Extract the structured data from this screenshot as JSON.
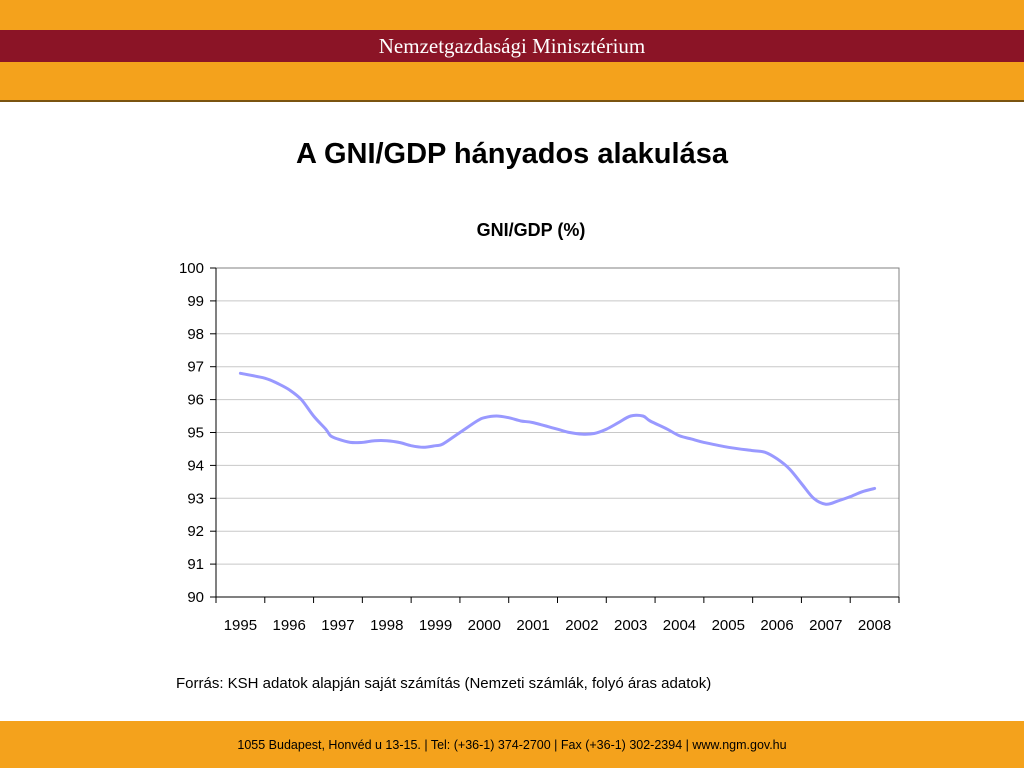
{
  "header": {
    "title": "Nemzetgazdasági Minisztérium"
  },
  "page": {
    "title": "A GNI/GDP hányados alakulása"
  },
  "chart_data": {
    "type": "line",
    "title": "GNI/GDP (%)",
    "xlabel": "",
    "ylabel": "",
    "categories": [
      "1995",
      "1996",
      "1997",
      "1998",
      "1999",
      "2000",
      "2001",
      "2002",
      "2003",
      "2004",
      "2005",
      "2006",
      "2007",
      "2008"
    ],
    "ylim": [
      90,
      100
    ],
    "yticks": [
      90,
      91,
      92,
      93,
      94,
      95,
      96,
      97,
      98,
      99,
      100
    ],
    "grid": true,
    "line_color": "#9999ff",
    "points": [
      {
        "x": 1995.0,
        "y": 96.8
      },
      {
        "x": 1995.5,
        "y": 96.65
      },
      {
        "x": 1995.75,
        "y": 96.5
      },
      {
        "x": 1996.0,
        "y": 96.3
      },
      {
        "x": 1996.25,
        "y": 96.0
      },
      {
        "x": 1996.5,
        "y": 95.5
      },
      {
        "x": 1996.75,
        "y": 95.1
      },
      {
        "x": 1996.85,
        "y": 94.9
      },
      {
        "x": 1997.0,
        "y": 94.8
      },
      {
        "x": 1997.25,
        "y": 94.7
      },
      {
        "x": 1997.5,
        "y": 94.7
      },
      {
        "x": 1997.75,
        "y": 94.75
      },
      {
        "x": 1998.0,
        "y": 94.75
      },
      {
        "x": 1998.25,
        "y": 94.7
      },
      {
        "x": 1998.5,
        "y": 94.6
      },
      {
        "x": 1998.75,
        "y": 94.55
      },
      {
        "x": 1999.0,
        "y": 94.6
      },
      {
        "x": 1999.15,
        "y": 94.65
      },
      {
        "x": 1999.5,
        "y": 95.0
      },
      {
        "x": 1999.85,
        "y": 95.35
      },
      {
        "x": 2000.0,
        "y": 95.45
      },
      {
        "x": 2000.25,
        "y": 95.5
      },
      {
        "x": 2000.5,
        "y": 95.45
      },
      {
        "x": 2000.75,
        "y": 95.35
      },
      {
        "x": 2001.0,
        "y": 95.3
      },
      {
        "x": 2001.5,
        "y": 95.1
      },
      {
        "x": 2001.75,
        "y": 95.0
      },
      {
        "x": 2002.0,
        "y": 94.95
      },
      {
        "x": 2002.25,
        "y": 94.97
      },
      {
        "x": 2002.5,
        "y": 95.1
      },
      {
        "x": 2002.75,
        "y": 95.3
      },
      {
        "x": 2003.0,
        "y": 95.5
      },
      {
        "x": 2003.25,
        "y": 95.5
      },
      {
        "x": 2003.4,
        "y": 95.35
      },
      {
        "x": 2003.75,
        "y": 95.1
      },
      {
        "x": 2004.0,
        "y": 94.9
      },
      {
        "x": 2004.25,
        "y": 94.8
      },
      {
        "x": 2004.5,
        "y": 94.7
      },
      {
        "x": 2005.0,
        "y": 94.55
      },
      {
        "x": 2005.5,
        "y": 94.45
      },
      {
        "x": 2005.75,
        "y": 94.4
      },
      {
        "x": 2006.0,
        "y": 94.2
      },
      {
        "x": 2006.25,
        "y": 93.9
      },
      {
        "x": 2006.5,
        "y": 93.45
      },
      {
        "x": 2006.75,
        "y": 93.0
      },
      {
        "x": 2007.0,
        "y": 92.82
      },
      {
        "x": 2007.25,
        "y": 92.92
      },
      {
        "x": 2007.5,
        "y": 93.05
      },
      {
        "x": 2007.75,
        "y": 93.2
      },
      {
        "x": 2008.0,
        "y": 93.3
      }
    ]
  },
  "source": {
    "text": "Forrás: KSH adatok alapján saját számítás (Nemzeti számlák, folyó áras adatok)"
  },
  "footer": {
    "text": "1055 Budapest, Honvéd u 13-15. | Tel: (+36-1) 374-2700 | Fax  (+36-1) 302-2394 |  www.ngm.gov.hu"
  }
}
